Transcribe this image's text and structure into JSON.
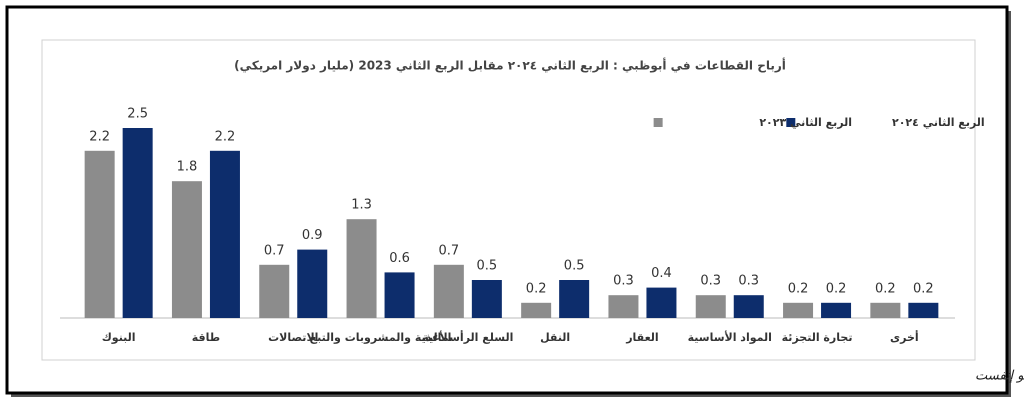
{
  "chart_data": {
    "type": "bar",
    "title": "أرباح القطاعات في أبوظبي : الربع الثاني ٢٠٢٤ مقابل الربع الثاني 2023 (مليار دولار امريكي)",
    "categories": [
      "البنوك",
      "طاقة",
      "الاتصالات",
      "الأغذية والمشروبات والتبغ",
      "السلع الرأسمالية",
      "النقل",
      "العقار",
      "المواد الأساسية",
      "تجارة التجزئة",
      "أخرى"
    ],
    "series": [
      {
        "name": "الربع الثاني ٢٠٢٣",
        "color": "#8c8c8c",
        "values": [
          2.2,
          1.8,
          0.7,
          1.3,
          0.7,
          0.2,
          0.3,
          0.3,
          0.2,
          0.2
        ]
      },
      {
        "name": "الربع الثاني ٢٠٢٤",
        "color": "#0d2d6c",
        "values": [
          2.5,
          2.2,
          0.9,
          0.6,
          0.5,
          0.5,
          0.4,
          0.3,
          0.2,
          0.2
        ]
      }
    ],
    "legend": "top-right",
    "source": "المصدر: البيانات المالية للشركات، بلومبرج، رويترز وبحوث كامكو إنفست"
  }
}
